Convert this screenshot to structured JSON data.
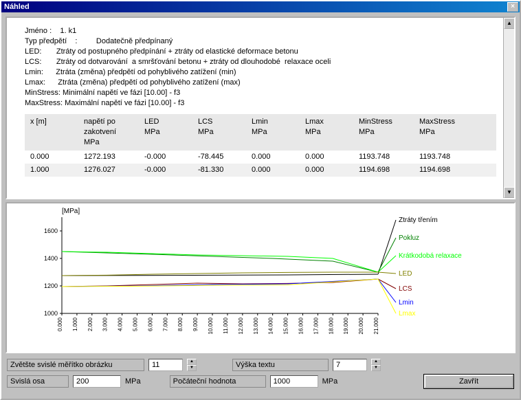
{
  "window": {
    "title": "Náhled"
  },
  "report": {
    "lines": [
      "Jméno :    1. k1",
      "Typ předpětí    :         Dodatečně předpínaný",
      "LED:       Ztráty od postupného předpínání + ztráty od elastické deformace betonu",
      "LCS:       Ztráty od dotvarování  a smršťování betonu + ztráty od dlouhodobé  relaxace oceli",
      "Lmin:      Ztráta (změna) předpětí od pohyblivého zatížení (min)",
      "Lmax:      Ztráta (změna) předpětí od pohyblivého zatížení (max)",
      "MinStress: Minimální napětí ve fázi [10.00] - f3",
      "MaxStress: Maximální napětí ve fázi [10.00] - f3"
    ],
    "headers1": [
      "x [m]",
      "napětí po",
      "LED",
      "LCS",
      "Lmin",
      "Lmax",
      "MinStress",
      "MaxStress"
    ],
    "headers2": [
      "",
      "zakotvení",
      "MPa",
      "MPa",
      "MPa",
      "MPa",
      "MPa",
      "MPa"
    ],
    "headers3": [
      "",
      "MPa",
      "",
      "",
      "",
      "",
      "",
      ""
    ],
    "rows": [
      [
        "0.000",
        "1272.193",
        "-0.000",
        "-78.445",
        "0.000",
        "0.000",
        "1193.748",
        "1193.748"
      ],
      [
        "1.000",
        "1276.027",
        "-0.000",
        "-81.330",
        "0.000",
        "0.000",
        "1194.698",
        "1194.698"
      ]
    ]
  },
  "chart": {
    "ylabel": "[MPa]",
    "y_ticks": [
      1000,
      1200,
      1400,
      1600
    ],
    "ylim": [
      1000,
      1700
    ],
    "x_ticks": [
      0,
      1,
      2,
      3,
      4,
      5,
      6,
      7,
      8,
      9,
      10,
      11,
      12,
      13,
      14,
      15,
      16,
      17,
      18,
      19,
      20,
      21
    ],
    "xlim": [
      0,
      21
    ],
    "plot_bg": "#ffffff",
    "axis_color": "#000000",
    "series": [
      {
        "name": "Ztráty třením",
        "color": "#000000",
        "points": [
          [
            0,
            1275
          ],
          [
            5,
            1276
          ],
          [
            10,
            1278
          ],
          [
            15,
            1280
          ],
          [
            21,
            1285
          ]
        ],
        "label_y": 1680
      },
      {
        "name": "Pokluz",
        "color": "#008000",
        "points": [
          [
            0,
            1450
          ],
          [
            3,
            1440
          ],
          [
            6,
            1430
          ],
          [
            10,
            1415
          ],
          [
            14,
            1400
          ],
          [
            18,
            1380
          ],
          [
            21,
            1300
          ]
        ],
        "label_y": 1550
      },
      {
        "name": "Krátkodobá relaxace",
        "color": "#00ff00",
        "points": [
          [
            0,
            1450
          ],
          [
            3,
            1445
          ],
          [
            6,
            1435
          ],
          [
            9,
            1425
          ],
          [
            12,
            1420
          ],
          [
            15,
            1415
          ],
          [
            18,
            1400
          ],
          [
            21,
            1300
          ]
        ],
        "label_y": 1420
      },
      {
        "name": "LED",
        "color": "#808000",
        "points": [
          [
            0,
            1275
          ],
          [
            3,
            1278
          ],
          [
            6,
            1285
          ],
          [
            9,
            1290
          ],
          [
            12,
            1295
          ],
          [
            15,
            1298
          ],
          [
            18,
            1300
          ],
          [
            21,
            1300
          ]
        ],
        "label_y": 1290
      },
      {
        "name": "LCS",
        "color": "#800000",
        "points": [
          [
            0,
            1195
          ],
          [
            3,
            1200
          ],
          [
            6,
            1210
          ],
          [
            9,
            1220
          ],
          [
            12,
            1215
          ],
          [
            15,
            1218
          ],
          [
            18,
            1225
          ],
          [
            21,
            1250
          ]
        ],
        "label_y": 1180
      },
      {
        "name": "Lmin",
        "color": "#0000ff",
        "points": [
          [
            0,
            1195
          ],
          [
            5,
            1200
          ],
          [
            10,
            1210
          ],
          [
            15,
            1215
          ],
          [
            21,
            1250
          ]
        ],
        "label_y": 1080
      },
      {
        "name": "Lmax",
        "color": "#ffff00",
        "points": [
          [
            0,
            1195
          ],
          [
            5,
            1198
          ],
          [
            10,
            1205
          ],
          [
            15,
            1208
          ],
          [
            21,
            1250
          ]
        ],
        "label_y": 1000
      }
    ]
  },
  "controls": {
    "scale_label": "Zvětšte svislé měřítko obrázku",
    "scale_value": "11",
    "text_height_label": "Výška textu",
    "text_height_value": "7",
    "vertical_axis_label": "Svislá osa",
    "vertical_axis_value": "200",
    "vertical_axis_unit": "MPa",
    "initial_value_label": "Počáteční hodnota",
    "initial_value_value": "1000",
    "initial_value_unit": "MPa",
    "close_label": "Zavřít"
  }
}
